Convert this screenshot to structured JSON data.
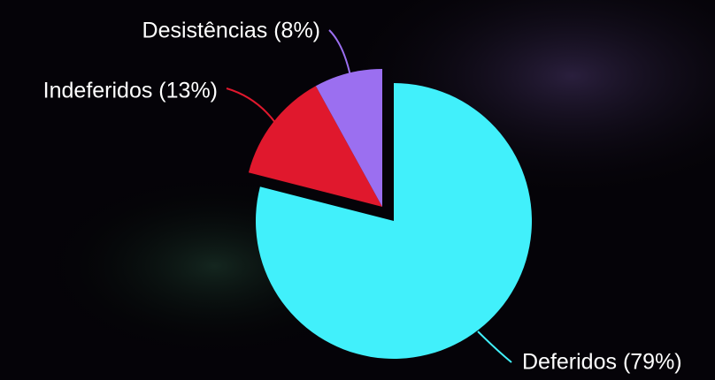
{
  "chart_data": {
    "type": "pie",
    "categories": [
      "Deferidos (79%)",
      "Indeferidos (13%)",
      "Desistências (8%)"
    ],
    "values": [
      79,
      13,
      8
    ],
    "colors": [
      "#41f0fb",
      "#e0182d",
      "#9b6ff0"
    ]
  }
}
